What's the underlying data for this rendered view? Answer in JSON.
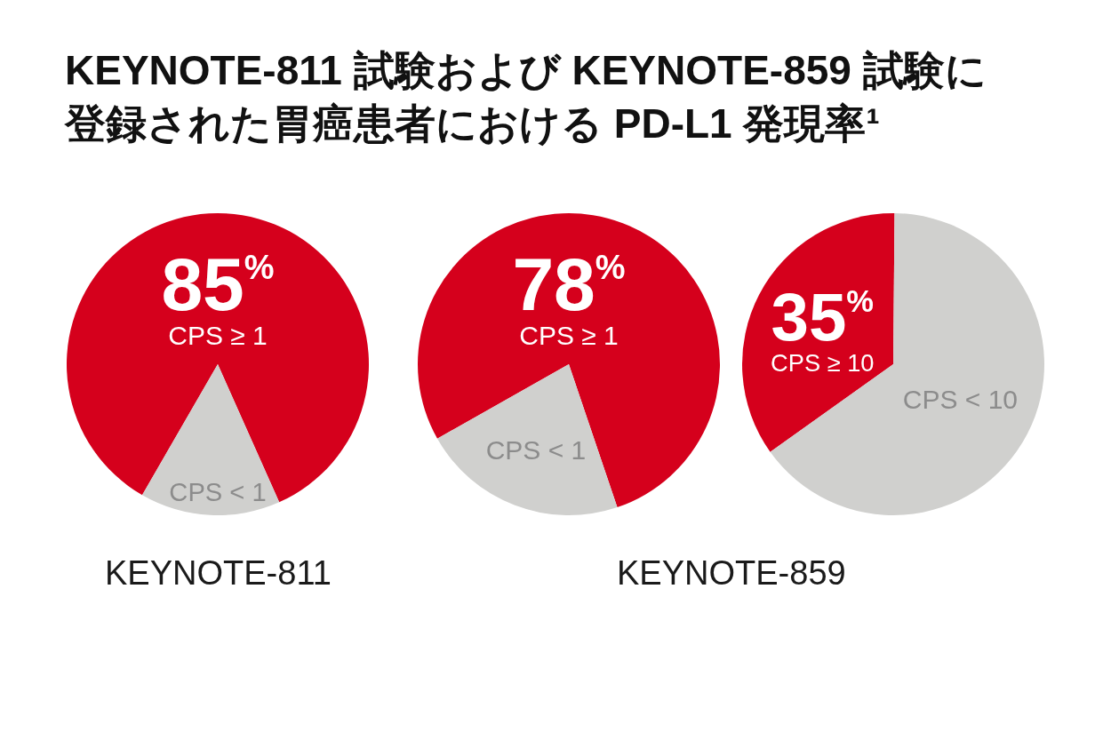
{
  "chart_data": [
    {
      "type": "pie",
      "title": "KEYNOTE-811 試験および KEYNOTE-859 試験に登録された胃癌患者における PD-L1 発現率¹",
      "categories": [
        "CPS ≥ 1",
        "CPS < 1"
      ],
      "values": [
        85,
        15
      ],
      "colors": [
        "#d5001c",
        "#d0d0ce"
      ],
      "value_labels": [
        "85$^{%}$",
        null
      ],
      "xlabel": "KEYNOTE-811"
    },
    {
      "type": "pie",
      "categories": [
        "CPS ≥ 1",
        "CPS < 1"
      ],
      "values": [
        78,
        22
      ],
      "colors": [
        "#d5001c",
        "#d0d0ce"
      ],
      "value_labels": [
        "78$^{%}$",
        null
      ],
      "xlabel": "KEYNOTE-859"
    },
    {
      "type": "pie",
      "categories": [
        "CPS ≥ 10",
        "CPS < 10"
      ],
      "values": [
        35,
        65
      ],
      "colors": [
        "#d5001c",
        "#d0d0ce"
      ],
      "value_labels": [
        "35$^{%}$",
        null
      ]
    }
  ]
}
